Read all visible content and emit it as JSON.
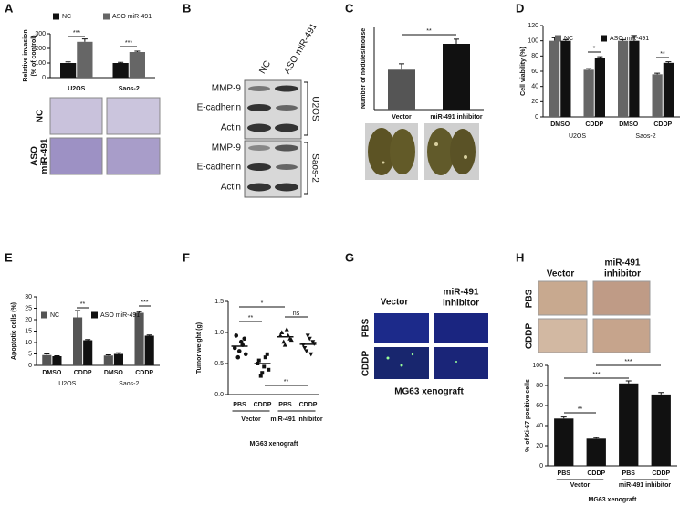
{
  "panels": [
    "A",
    "B",
    "C",
    "D",
    "E",
    "F",
    "G",
    "H"
  ],
  "a_images": {
    "row_labels": [
      [
        "NC"
      ],
      [
        "ASO",
        "miR-491"
      ]
    ]
  },
  "b_blot": {
    "columns": [
      "NC",
      "ASO miR-491"
    ],
    "bands": [
      "MMP-9",
      "E-cadherin",
      "Actin",
      "MMP-9",
      "E-cadherin",
      "Actin"
    ],
    "cell_lines": [
      "U2OS",
      "Saos-2"
    ]
  },
  "g_images": {
    "columns": [
      [
        "Vector"
      ],
      [
        "miR-491",
        "inhibitor"
      ]
    ],
    "rows": [
      "PBS",
      "CDDP"
    ],
    "caption": "MG63 xenograft"
  },
  "h_images": {
    "columns": [
      [
        "Vector"
      ],
      [
        "miR-491",
        "inhibitor"
      ]
    ],
    "rows": [
      "PBS",
      "CDDP"
    ]
  },
  "chart_data": [
    {
      "type": "bar",
      "categories": [
        "U2OS",
        "Saos-2"
      ],
      "ylabel": [
        "Relative invasion",
        "(% of control)"
      ],
      "ylim": [
        0,
        300
      ],
      "yticks": [
        0,
        100,
        200,
        300
      ],
      "series": [
        {
          "name": "NC",
          "color": "#111111",
          "values": [
            100,
            100
          ],
          "errors": [
            8,
            5
          ]
        },
        {
          "name": "ASO miR-491",
          "color": "#666666",
          "values": [
            245,
            175
          ],
          "errors": [
            20,
            6
          ]
        }
      ],
      "annotations": [
        "***",
        "***"
      ]
    },
    {
      "type": "bar",
      "categories": [
        "Vector",
        "miR-491 inhibitor"
      ],
      "ylabel": [
        "Number of nodules/mouse"
      ],
      "ylim": [
        0,
        35
      ],
      "values": [
        17,
        28
      ],
      "errors": [
        2.5,
        2
      ],
      "colors": [
        "#555555",
        "#111111"
      ],
      "annotations": [
        "**"
      ]
    },
    {
      "type": "bar",
      "categories": [
        "DMSO",
        "CDDP",
        "DMSO",
        "CDDP"
      ],
      "groups": [
        "U2OS",
        "Saos-2"
      ],
      "ylabel": [
        "Cell viability (%)"
      ],
      "ylim": [
        0,
        120
      ],
      "yticks": [
        0,
        20,
        40,
        60,
        80,
        100,
        120
      ],
      "series": [
        {
          "name": "NC",
          "color": "#666666",
          "values": [
            100,
            62,
            100,
            56
          ],
          "errors": [
            4,
            1.5,
            1.5,
            1.5
          ]
        },
        {
          "name": "ASO miR-491",
          "color": "#111111",
          "values": [
            100,
            77,
            100,
            71
          ],
          "errors": [
            1.5,
            2,
            7,
            1.5
          ]
        }
      ],
      "annotations": [
        "*",
        "**"
      ]
    },
    {
      "type": "bar",
      "categories": [
        "DMSO",
        "CDDP",
        "DMSO",
        "CDDP"
      ],
      "groups": [
        "U2OS",
        "Saos-2"
      ],
      "ylabel": [
        "Apoptotic cells (%)"
      ],
      "ylim": [
        0,
        30
      ],
      "yticks": [
        0,
        5,
        10,
        15,
        20,
        25,
        30
      ],
      "series": [
        {
          "name": "NC",
          "color": "#555555",
          "values": [
            4.5,
            21,
            4.3,
            23
          ],
          "errors": [
            0.5,
            3,
            0.3,
            0.5
          ]
        },
        {
          "name": "ASO miR-491",
          "color": "#111111",
          "values": [
            4,
            11,
            5,
            13
          ],
          "errors": [
            0.2,
            0.3,
            0.5,
            0.3
          ]
        }
      ],
      "annotations": [
        "**",
        "***"
      ]
    },
    {
      "type": "scatter",
      "categories": [
        "PBS",
        "CDDP",
        "PBS",
        "CDDP"
      ],
      "groups": [
        "Vector",
        "miR-491 inhibitor"
      ],
      "xlabel": "MG63 xenograft",
      "ylabel": [
        "Tumor weight (g)"
      ],
      "ylim": [
        0,
        1.5
      ],
      "yticks": [
        {
          "value": 0,
          "label": "0.0"
        },
        0.5,
        {
          "value": 1,
          "label": "1.0"
        },
        1.5
      ],
      "point_groups": [
        {
          "marker": "circle",
          "values": [
            0.75,
            0.6,
            0.85,
            0.9,
            0.95,
            0.7,
            0.8,
            0.65
          ],
          "mean": 0.78
        },
        {
          "marker": "square",
          "values": [
            0.5,
            0.3,
            0.45,
            0.65,
            0.55,
            0.35,
            0.6,
            0.4
          ],
          "mean": 0.5
        },
        {
          "marker": "triangle",
          "values": [
            0.95,
            0.85,
            1.05,
            0.9,
            1.0,
            0.8,
            0.95,
            0.88
          ],
          "mean": 0.93
        },
        {
          "marker": "triangle-down",
          "values": [
            0.8,
            0.7,
            0.9,
            0.85,
            0.75,
            0.95,
            0.65,
            0.82
          ],
          "mean": 0.81
        }
      ],
      "annotations": [
        "*",
        "ns",
        "**",
        "**"
      ]
    },
    {
      "type": "bar",
      "categories": [
        "PBS",
        "CDDP",
        "PBS",
        "CDDP"
      ],
      "groups": [
        "Vector",
        "miR-491 inhibitor"
      ],
      "xlabel": "MG63 xenograft",
      "ylabel": [
        "% of Ki-67 positive cells"
      ],
      "ylim": [
        0,
        100
      ],
      "yticks": [
        0,
        20,
        40,
        60,
        80,
        100
      ],
      "values": [
        47,
        27,
        82,
        71
      ],
      "errors": [
        1.5,
        1,
        2.5,
        2
      ],
      "colors": [
        "#111111",
        "#111111",
        "#111111",
        "#111111"
      ],
      "annotations": [
        "**",
        "***",
        "***"
      ]
    }
  ]
}
